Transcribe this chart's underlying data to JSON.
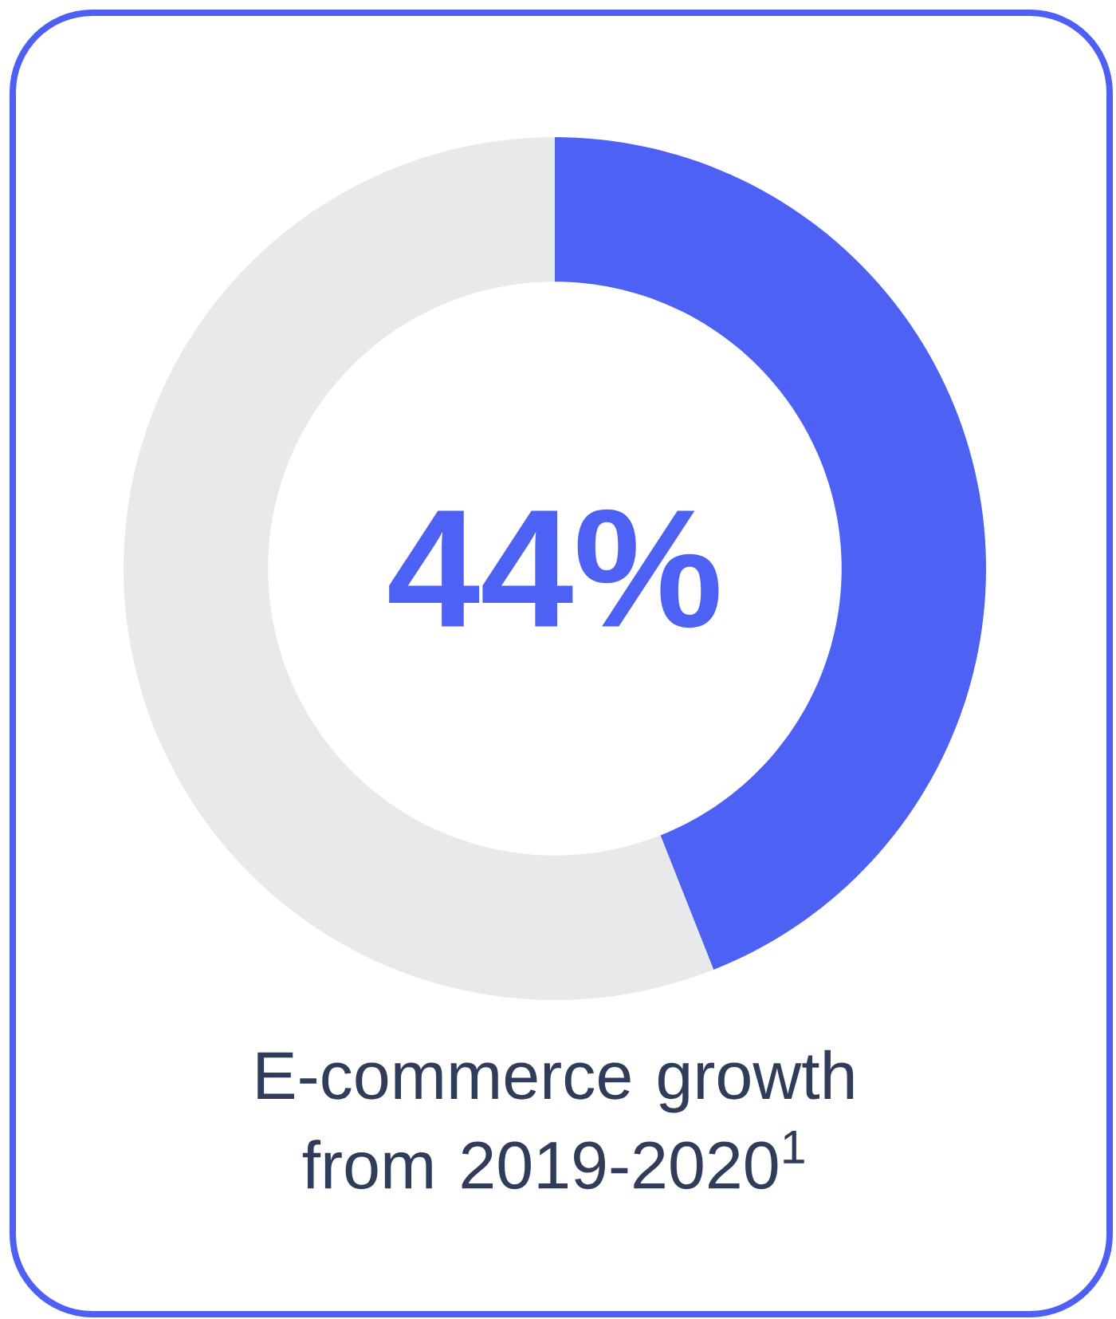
{
  "chart_data": {
    "type": "donut",
    "title": "E-commerce growth from 2019-2020$^{1}$",
    "categories": [
      null,
      null
    ],
    "values": [
      44,
      56
    ],
    "colors": [
      "#4d62f5",
      "#e8e9eb"
    ],
    "annotations": [
      "44%"
    ]
  }
}
